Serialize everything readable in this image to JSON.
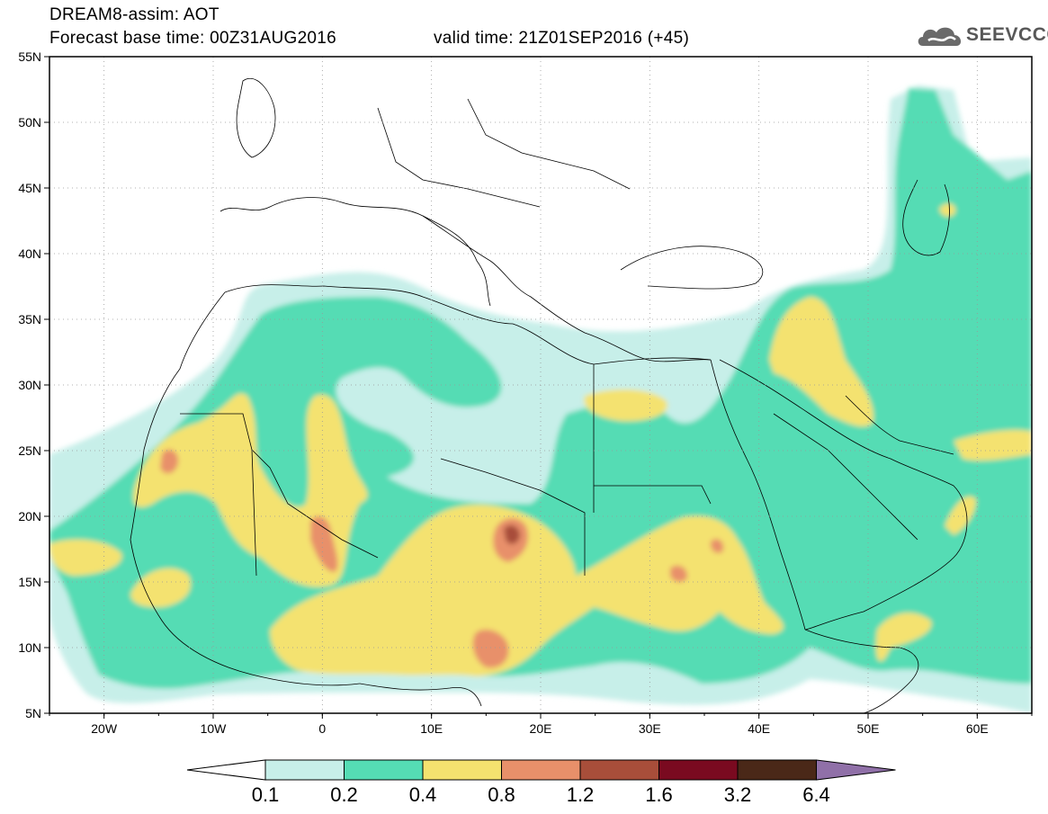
{
  "header": {
    "model_line": "DREAM8-assim: AOT",
    "base_time": "Forecast base time: 00Z31AUG2016",
    "valid_time": "valid time: 21Z01SEP2016 (+45)"
  },
  "logo": {
    "text": "SEEVCCC",
    "icon": "cloud-icon"
  },
  "map": {
    "lat_ticks": [
      "55N",
      "50N",
      "45N",
      "40N",
      "35N",
      "30N",
      "25N",
      "20N",
      "15N",
      "10N",
      "5N"
    ],
    "lon_ticks": [
      "20W",
      "10W",
      "0",
      "10E",
      "20E",
      "30E",
      "40E",
      "50E",
      "60E"
    ],
    "lat_range": [
      5,
      55
    ],
    "lon_range": [
      -25,
      65
    ],
    "grid": true
  },
  "colorbar": {
    "labels": [
      "0.1",
      "0.2",
      "0.4",
      "0.8",
      "1.2",
      "1.6",
      "3.2",
      "6.4"
    ],
    "colors": [
      "#ffffff",
      "#c7efe9",
      "#55dcb4",
      "#f4e26f",
      "#e8906a",
      "#a84e3a",
      "#7a0a20",
      "#4a2818",
      "#9070a8"
    ]
  }
}
